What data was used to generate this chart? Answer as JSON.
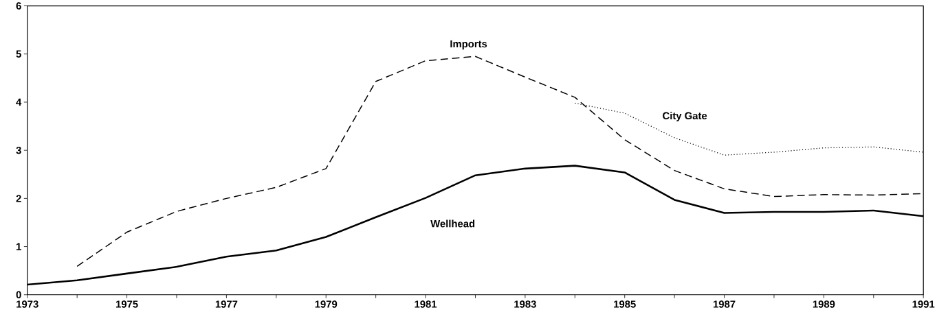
{
  "chart_data": {
    "type": "line",
    "x": [
      1973,
      1974,
      1975,
      1976,
      1977,
      1978,
      1979,
      1980,
      1981,
      1982,
      1983,
      1984,
      1985,
      1986,
      1987,
      1988,
      1989,
      1990,
      1991
    ],
    "series": [
      {
        "name": "Imports",
        "color": "#000000",
        "line_style": "dashed",
        "values": [
          null,
          0.59,
          1.3,
          1.73,
          2.0,
          2.23,
          2.62,
          4.43,
          4.86,
          4.95,
          4.52,
          4.1,
          3.22,
          2.58,
          2.2,
          2.04,
          2.08,
          2.07,
          2.1
        ]
      },
      {
        "name": "Wellhead",
        "color": "#000000",
        "line_style": "solid",
        "values": [
          0.21,
          0.3,
          0.44,
          0.58,
          0.79,
          0.92,
          1.2,
          1.61,
          2.01,
          2.48,
          2.62,
          2.68,
          2.54,
          1.97,
          1.7,
          1.72,
          1.72,
          1.75,
          1.63
        ]
      },
      {
        "name": "City Gate",
        "color": "#000000",
        "line_style": "dotted",
        "values": [
          null,
          null,
          null,
          null,
          null,
          null,
          null,
          null,
          null,
          null,
          null,
          3.98,
          3.77,
          3.26,
          2.9,
          2.96,
          3.05,
          3.07,
          2.96
        ]
      }
    ],
    "xlim": [
      1973,
      1991
    ],
    "xticks": [
      1973,
      {
        "value": 1974,
        "label": null
      },
      1975,
      {
        "value": 1976,
        "label": null
      },
      1977,
      {
        "value": 1978,
        "label": null
      },
      1979,
      {
        "value": 1980,
        "label": null
      },
      1981,
      {
        "value": 1982,
        "label": null
      },
      1983,
      {
        "value": 1984,
        "label": null
      },
      1985,
      {
        "value": 1986,
        "label": null
      },
      1987,
      {
        "value": 1988,
        "label": null
      },
      1989,
      {
        "value": 1990,
        "label": null
      },
      1991
    ],
    "ylim": [
      0,
      6
    ],
    "yticks": [
      0,
      1,
      2,
      3,
      4,
      5,
      6
    ],
    "grid": false,
    "legend": false,
    "marker": "none"
  }
}
